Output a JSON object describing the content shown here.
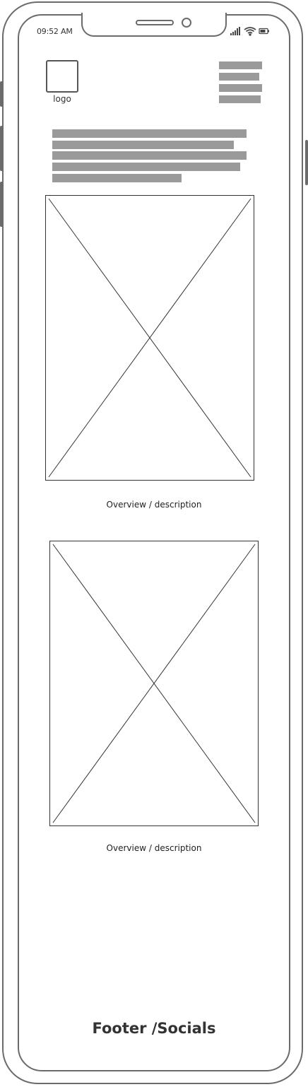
{
  "status_bar": {
    "time": "09:52 AM",
    "icons": [
      "signal-icon",
      "wifi-icon",
      "battery-icon"
    ]
  },
  "header": {
    "logo_label": "logo",
    "menu_icon": "hamburger-menu-icon"
  },
  "intro": {
    "placeholder_text_lines": 5
  },
  "content": {
    "items": [
      {
        "image": "image-placeholder",
        "caption": "Overview / description"
      },
      {
        "image": "image-placeholder",
        "caption": "Overview / description"
      }
    ]
  },
  "footer": {
    "label": "Footer /Socials"
  },
  "colors": {
    "outline": "#6b6b6b",
    "placeholder_bar": "#9a9a9a",
    "background": "#ffffff"
  }
}
